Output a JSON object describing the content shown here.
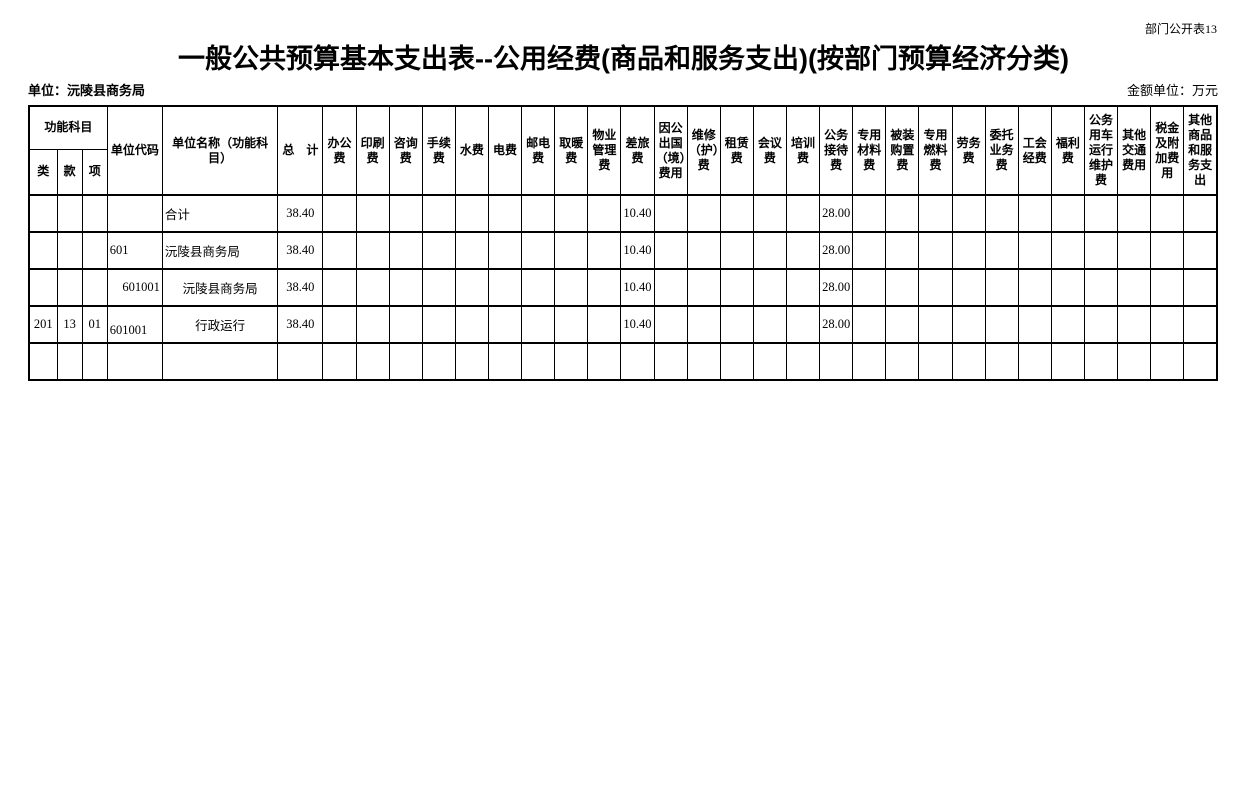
{
  "page": {
    "corner_label": "部门公开表13",
    "title": "一般公共预算基本支出表--公用经费(商品和服务支出)(按部门预算经济分类)",
    "unit_label": "单位：沅陵县商务局",
    "amount_unit_label": "金额单位：万元"
  },
  "table": {
    "header": {
      "func_group": "功能科目",
      "func_cols": [
        "类",
        "款",
        "项"
      ],
      "unit_code": "单位代码",
      "unit_name": "单位名称（功能科目）",
      "total": "总　计",
      "expense_cols": [
        "办公费",
        "印刷费",
        "咨询费",
        "手续费",
        "水费",
        "电费",
        "邮电费",
        "取暖费",
        "物业管理费",
        "差旅费",
        "因公出国（境）费用",
        "维修（护）费",
        "租赁费",
        "会议费",
        "培训费",
        "公务接待费",
        "专用材料费",
        "被装购置费",
        "专用燃料费",
        "劳务费",
        "委托业务费",
        "工会经费",
        "福利费",
        "公务用车运行维护费",
        "其他交通费用",
        "税金及附加费用",
        "其他商品和服务支出"
      ]
    },
    "rows": [
      {
        "func": [
          "",
          "",
          ""
        ],
        "code": "",
        "code_align": "left",
        "name": "合计",
        "name_align": "left",
        "total": "38.40",
        "expenses": [
          "",
          "",
          "",
          "",
          "",
          "",
          "",
          "",
          "",
          "10.40",
          "",
          "",
          "",
          "",
          "",
          "28.00",
          "",
          "",
          "",
          "",
          "",
          "",
          "",
          "",
          "",
          "",
          ""
        ]
      },
      {
        "func": [
          "",
          "",
          ""
        ],
        "code": "601",
        "code_align": "left",
        "name": "沅陵县商务局",
        "name_align": "left",
        "total": "38.40",
        "expenses": [
          "",
          "",
          "",
          "",
          "",
          "",
          "",
          "",
          "",
          "10.40",
          "",
          "",
          "",
          "",
          "",
          "28.00",
          "",
          "",
          "",
          "",
          "",
          "",
          "",
          "",
          "",
          "",
          ""
        ]
      },
      {
        "func": [
          "",
          "",
          ""
        ],
        "code": "601001",
        "code_align": "right",
        "name": "沅陵县商务局",
        "name_align": "center",
        "total": "38.40",
        "expenses": [
          "",
          "",
          "",
          "",
          "",
          "",
          "",
          "",
          "",
          "10.40",
          "",
          "",
          "",
          "",
          "",
          "28.00",
          "",
          "",
          "",
          "",
          "",
          "",
          "",
          "",
          "",
          "",
          ""
        ]
      },
      {
        "func": [
          "201",
          "13",
          "01"
        ],
        "code": "601001",
        "code_align": "left-bottom",
        "name": "行政运行",
        "name_align": "center",
        "total": "38.40",
        "expenses": [
          "",
          "",
          "",
          "",
          "",
          "",
          "",
          "",
          "",
          "10.40",
          "",
          "",
          "",
          "",
          "",
          "28.00",
          "",
          "",
          "",
          "",
          "",
          "",
          "",
          "",
          "",
          "",
          ""
        ]
      },
      {
        "func": [
          "",
          "",
          ""
        ],
        "code": "",
        "code_align": "left",
        "name": "",
        "name_align": "center",
        "total": "",
        "expenses": [
          "",
          "",
          "",
          "",
          "",
          "",
          "",
          "",
          "",
          "",
          "",
          "",
          "",
          "",
          "",
          "",
          "",
          "",
          "",
          "",
          "",
          "",
          "",
          "",
          "",
          "",
          ""
        ]
      }
    ]
  }
}
